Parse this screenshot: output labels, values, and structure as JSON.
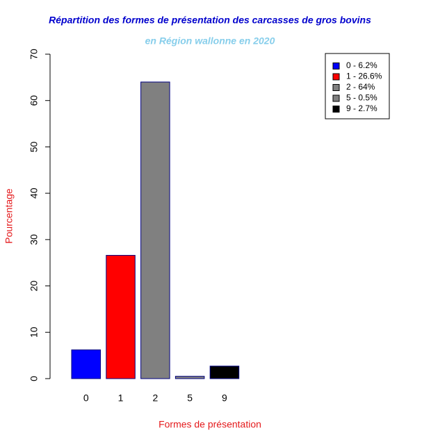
{
  "chart_data": {
    "type": "bar",
    "title": "Répartition des formes de présentation des carcasses de gros bovins",
    "subtitle": "en Région wallonne en 2020",
    "x_label": "Formes de présentation",
    "y_label": "Pourcentage",
    "categories": [
      "0",
      "1",
      "2",
      "5",
      "9"
    ],
    "values": [
      6.2,
      26.6,
      64,
      0.5,
      2.7
    ],
    "colors": [
      "#0000ff",
      "#ff0000",
      "#808080",
      "#808080",
      "#000000"
    ],
    "legend": [
      "0 - 6.2%",
      "1 - 26.6%",
      "2 - 64%",
      "5 - 0.5%",
      "9 - 2.7%"
    ],
    "legend_position": "top-right",
    "ylim": [
      0,
      70
    ],
    "yticks": [
      0,
      10,
      20,
      30,
      40,
      50,
      60,
      70
    ],
    "grid": false
  }
}
